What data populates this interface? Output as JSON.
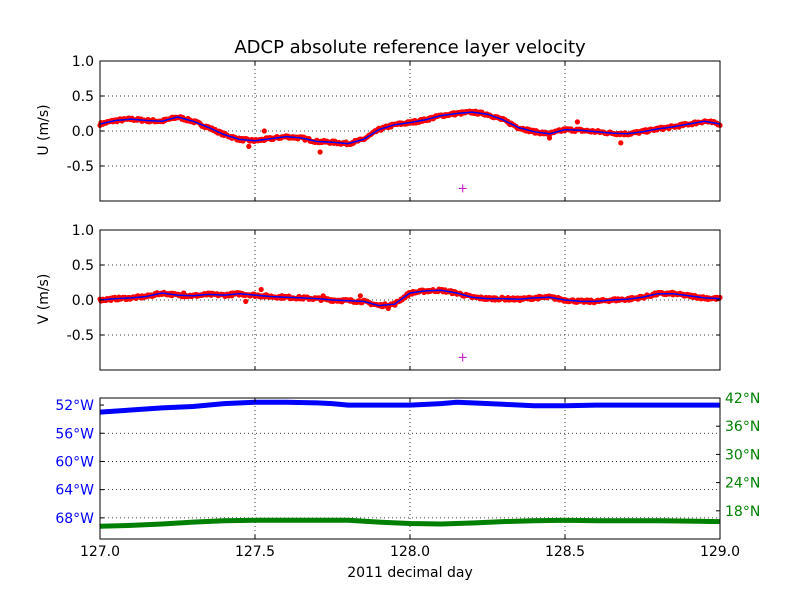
{
  "chart_data": [
    {
      "type": "scatter",
      "title": "ADCP absolute reference layer velocity",
      "ylabel": "U (m/s)",
      "xlim": [
        127.0,
        129.0
      ],
      "ylim": [
        -1.0,
        1.0
      ],
      "yticks": [
        "1.0",
        "0.5",
        "0.0",
        "-0.5"
      ],
      "grid": true,
      "colors": {
        "points": "#ff0000",
        "line": "#0000ff",
        "marker": "#bf00bf"
      },
      "series": [
        {
          "x": [
            127.0,
            127.05,
            127.1,
            127.15,
            127.2,
            127.25,
            127.3,
            127.35,
            127.4,
            127.45,
            127.5,
            127.55,
            127.6,
            127.65,
            127.7,
            127.75,
            127.8,
            127.85,
            127.9,
            127.95,
            128.0,
            128.05,
            128.1,
            128.15,
            128.2,
            128.25,
            128.3,
            128.35,
            128.4,
            128.45,
            128.5,
            128.55,
            128.6,
            128.65,
            128.7,
            128.75,
            128.8,
            128.85,
            128.9,
            128.95,
            129.0
          ],
          "y": [
            0.1,
            0.15,
            0.17,
            0.15,
            0.14,
            0.2,
            0.14,
            0.05,
            -0.05,
            -0.12,
            -0.14,
            -0.11,
            -0.08,
            -0.1,
            -0.15,
            -0.16,
            -0.18,
            -0.12,
            0.02,
            0.09,
            0.12,
            0.16,
            0.22,
            0.25,
            0.27,
            0.24,
            0.16,
            0.05,
            -0.01,
            -0.04,
            0.02,
            0.01,
            -0.01,
            -0.03,
            -0.04,
            -0.01,
            0.03,
            0.06,
            0.1,
            0.14,
            0.1
          ]
        }
      ],
      "outliers": {
        "x": [
          127.48,
          127.53,
          127.71,
          128.45,
          128.54,
          128.68
        ],
        "y": [
          -0.22,
          0.0,
          -0.3,
          -0.1,
          0.13,
          -0.17
        ]
      },
      "marker": {
        "x": 128.17,
        "y": -0.82
      }
    },
    {
      "type": "scatter",
      "ylabel": "V (m/s)",
      "xlim": [
        127.0,
        129.0
      ],
      "ylim": [
        -1.0,
        1.0
      ],
      "yticks": [
        "1.0",
        "0.5",
        "0.0",
        "-0.5"
      ],
      "grid": true,
      "series": [
        {
          "x": [
            127.0,
            127.05,
            127.1,
            127.15,
            127.2,
            127.25,
            127.3,
            127.35,
            127.4,
            127.45,
            127.5,
            127.55,
            127.6,
            127.65,
            127.7,
            127.75,
            127.8,
            127.85,
            127.9,
            127.95,
            128.0,
            128.05,
            128.1,
            128.15,
            128.2,
            128.25,
            128.3,
            128.35,
            128.4,
            128.45,
            128.5,
            128.55,
            128.6,
            128.65,
            128.7,
            128.75,
            128.8,
            128.85,
            128.9,
            128.95,
            129.0
          ],
          "y": [
            0.0,
            0.02,
            0.03,
            0.05,
            0.1,
            0.07,
            0.06,
            0.08,
            0.07,
            0.09,
            0.07,
            0.05,
            0.04,
            0.03,
            0.02,
            0.0,
            -0.01,
            -0.02,
            -0.08,
            -0.06,
            0.1,
            0.13,
            0.14,
            0.1,
            0.04,
            0.02,
            0.02,
            0.01,
            0.03,
            0.04,
            0.0,
            -0.02,
            -0.02,
            0.0,
            0.01,
            0.04,
            0.09,
            0.09,
            0.06,
            0.03,
            0.02
          ]
        }
      ],
      "outliers": {
        "x": [
          127.27,
          127.47,
          127.52,
          127.72,
          127.84,
          127.93
        ],
        "y": [
          0.1,
          -0.02,
          0.15,
          0.06,
          0.06,
          -0.12
        ]
      },
      "marker": {
        "x": 128.17,
        "y": -0.82
      }
    },
    {
      "type": "line",
      "xlabel": "2011 decimal day",
      "xlim": [
        127.0,
        129.0
      ],
      "xticks": [
        "127.0",
        "127.5",
        "128.0",
        "128.5",
        "129.0"
      ],
      "grid": true,
      "left_axis": {
        "ylim": [
          -71.0,
          -51.0
        ],
        "ticks": [
          "52°W",
          "56°W",
          "60°W",
          "64°W",
          "68°W"
        ],
        "color": "#0000ff"
      },
      "right_axis": {
        "ylim": [
          12.0,
          42.0
        ],
        "ticks": [
          "42°N",
          "36°N",
          "30°N",
          "24°N",
          "18°N"
        ],
        "color": "#008000"
      },
      "series": [
        {
          "axis": "left",
          "x": [
            127.0,
            127.1,
            127.2,
            127.3,
            127.4,
            127.5,
            127.6,
            127.7,
            127.75,
            127.8,
            127.9,
            128.0,
            128.1,
            128.15,
            128.2,
            128.3,
            128.4,
            128.5,
            128.6,
            128.7,
            128.8,
            128.9,
            129.0
          ],
          "y": [
            -53.0,
            -52.7,
            -52.4,
            -52.2,
            -51.8,
            -51.6,
            -51.6,
            -51.7,
            -51.8,
            -52.0,
            -52.0,
            -52.0,
            -51.8,
            -51.6,
            -51.7,
            -51.9,
            -52.1,
            -52.1,
            -52.0,
            -52.0,
            -52.0,
            -52.0,
            -52.0
          ]
        },
        {
          "axis": "right",
          "x": [
            127.0,
            127.1,
            127.2,
            127.3,
            127.4,
            127.5,
            127.6,
            127.7,
            127.8,
            127.9,
            128.0,
            128.1,
            128.2,
            128.3,
            128.4,
            128.5,
            128.6,
            128.7,
            128.8,
            128.9,
            129.0
          ],
          "y": [
            14.7,
            14.9,
            15.2,
            15.6,
            15.9,
            16.0,
            16.0,
            16.0,
            16.0,
            15.6,
            15.3,
            15.2,
            15.4,
            15.7,
            15.9,
            16.0,
            15.9,
            15.9,
            15.9,
            15.8,
            15.7
          ]
        }
      ]
    }
  ]
}
